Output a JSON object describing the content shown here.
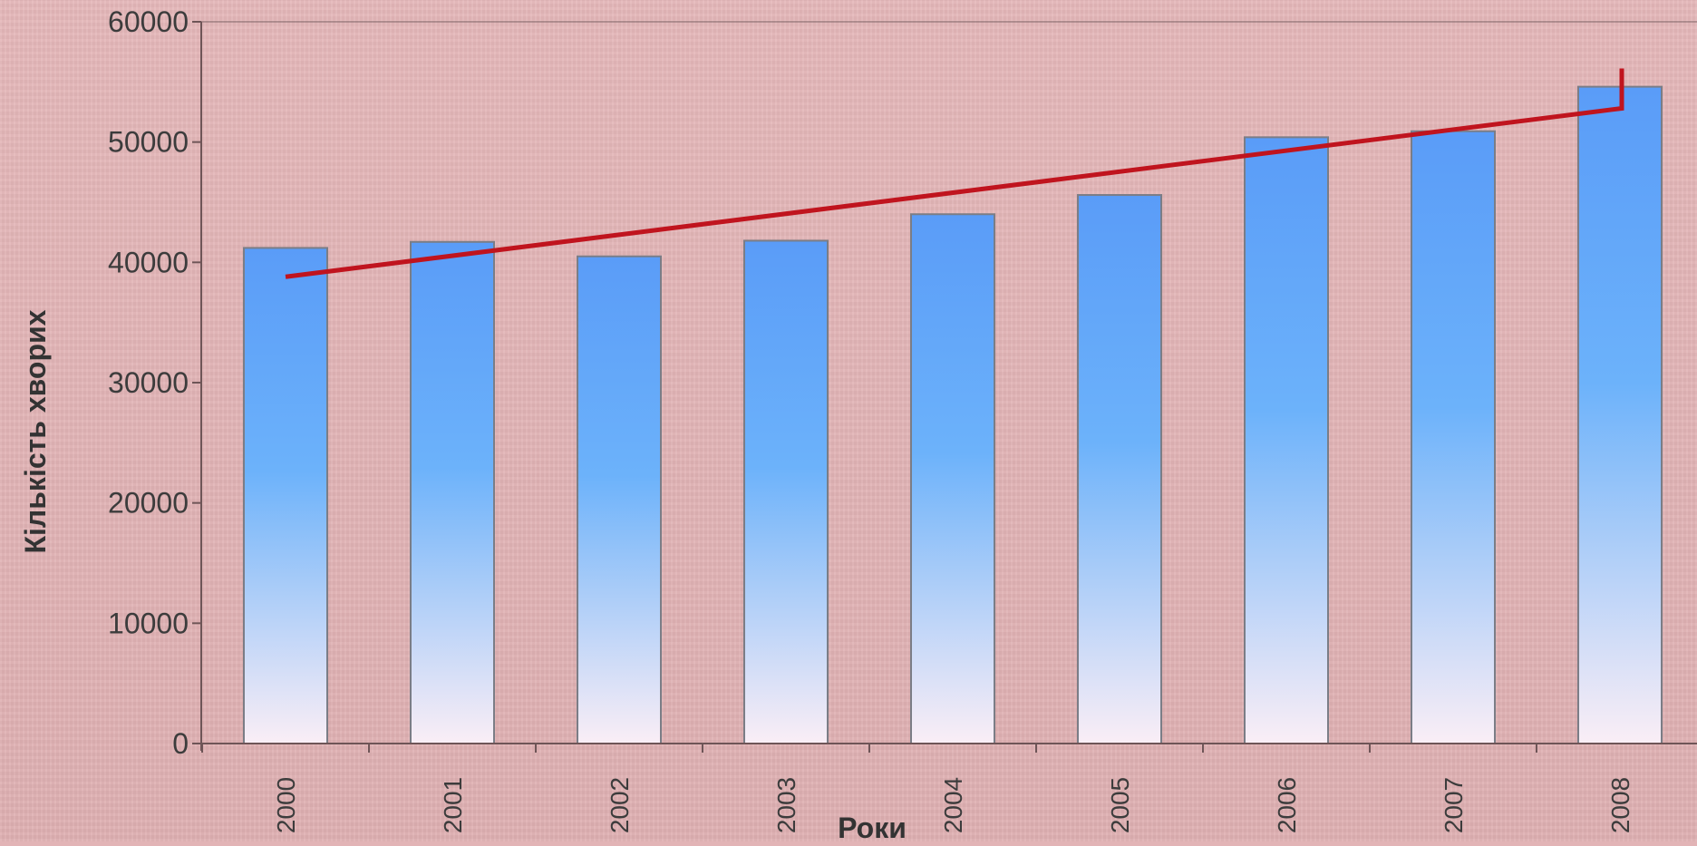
{
  "chart_data": {
    "type": "bar",
    "title": "",
    "xlabel": "Роки",
    "ylabel": "Кількість хворих",
    "categories": [
      "2000",
      "2001",
      "2002",
      "2003",
      "2004",
      "2005",
      "2006",
      "2007",
      "2008"
    ],
    "series": [
      {
        "values": [
          41200,
          41700,
          40500,
          41800,
          44000,
          45600,
          50400,
          50900,
          54600
        ]
      }
    ],
    "trendline": {
      "type": "linear",
      "start": 38800,
      "end": 52800,
      "color": "#c0141e"
    },
    "ylim": [
      0,
      60000
    ],
    "yticks": [
      0,
      10000,
      20000,
      30000,
      40000,
      50000,
      60000
    ],
    "grid": false,
    "legend": "none",
    "colors": {
      "background": "#e2b4b6",
      "bar_top": "#5a9cf8",
      "bar_mid": "#6cb2fa",
      "bar_bottom": "#faeef6",
      "bar_stroke": "#7b7d86",
      "axis": "#6e5557",
      "trendline": "#c0141e"
    }
  }
}
